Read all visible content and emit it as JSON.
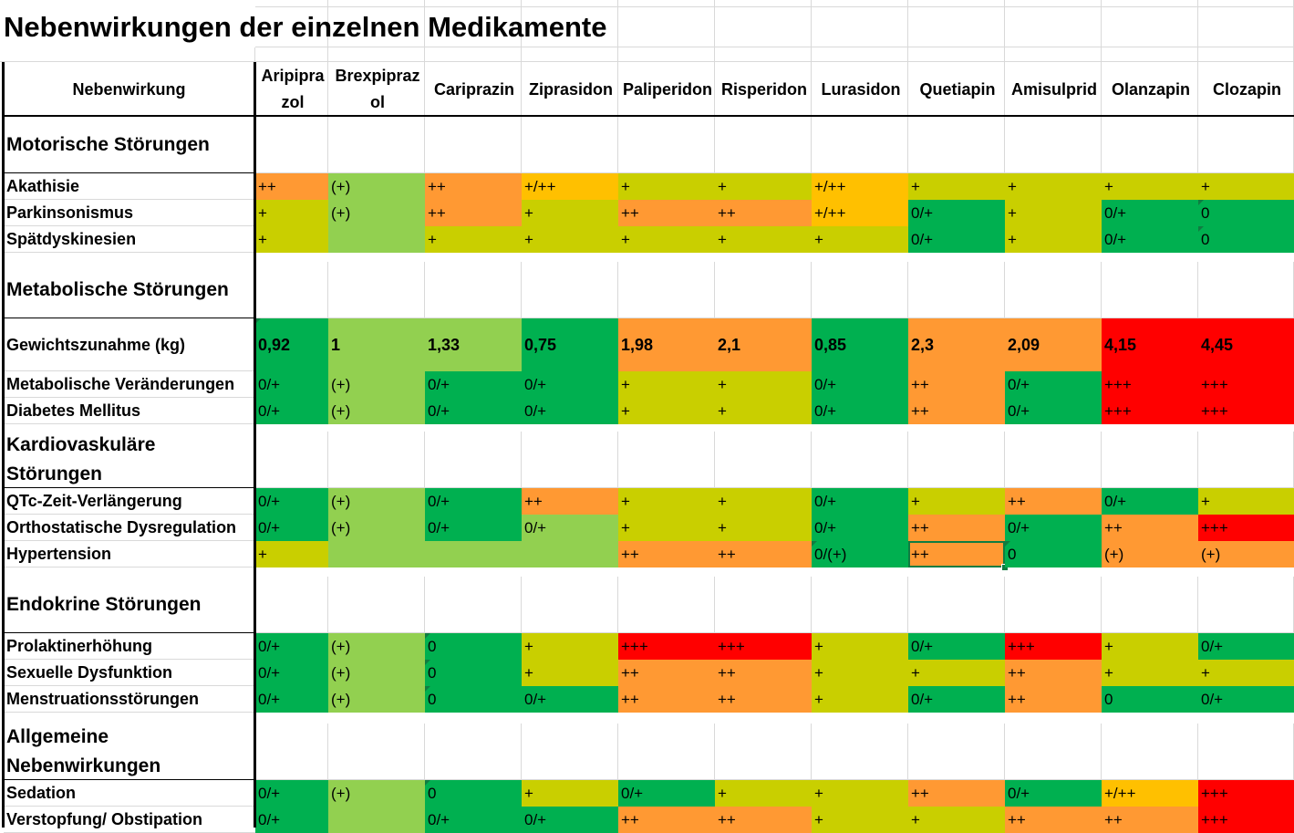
{
  "title": "Nebenwirkungen der einzelnen Medikamente",
  "header": {
    "label_column": "Nebenwirkung",
    "columns": [
      "Aripiprazol",
      "Brexpiprazol",
      "Cariprazin",
      "Ziprasidon",
      "Paliperidon",
      "Risperidon",
      "Lurasidon",
      "Quetiapin",
      "Amisulprid",
      "Olanzapin",
      "Clozapin"
    ]
  },
  "colors": {
    "dark_green": "#00b050",
    "light_green": "#92d050",
    "yellow_green": "#c9cf00",
    "amber": "#ffc000",
    "orange": "#ff9933",
    "red": "#ff0000"
  },
  "sections": [
    {
      "title": "Motorische Störungen",
      "rows": [
        {
          "label": "Akathisie",
          "cells": [
            {
              "text": "++",
              "color": "orange"
            },
            {
              "text": "(+)",
              "color": "light_green"
            },
            {
              "text": "++",
              "color": "orange"
            },
            {
              "text": "+/++",
              "color": "amber"
            },
            {
              "text": "+",
              "color": "yellow_green"
            },
            {
              "text": "+",
              "color": "yellow_green"
            },
            {
              "text": "+/++",
              "color": "amber"
            },
            {
              "text": "+",
              "color": "yellow_green"
            },
            {
              "text": "+",
              "color": "yellow_green"
            },
            {
              "text": "+",
              "color": "yellow_green"
            },
            {
              "text": "+",
              "color": "yellow_green"
            }
          ]
        },
        {
          "label": "Parkinsonismus",
          "cells": [
            {
              "text": "+",
              "color": "yellow_green"
            },
            {
              "text": "(+)",
              "color": "light_green"
            },
            {
              "text": "++",
              "color": "orange"
            },
            {
              "text": "+",
              "color": "yellow_green"
            },
            {
              "text": "++",
              "color": "orange"
            },
            {
              "text": "++",
              "color": "orange"
            },
            {
              "text": "+/++",
              "color": "amber"
            },
            {
              "text": "0/+",
              "color": "dark_green"
            },
            {
              "text": "+",
              "color": "yellow_green"
            },
            {
              "text": "0/+",
              "color": "dark_green"
            },
            {
              "text": "0",
              "color": "dark_green",
              "mark": true
            }
          ]
        },
        {
          "label": "Spätdyskinesien",
          "cells": [
            {
              "text": "+",
              "color": "yellow_green"
            },
            {
              "text": "",
              "color": "light_green"
            },
            {
              "text": "+",
              "color": "yellow_green"
            },
            {
              "text": "+",
              "color": "yellow_green"
            },
            {
              "text": "+",
              "color": "yellow_green"
            },
            {
              "text": "+",
              "color": "yellow_green"
            },
            {
              "text": "+",
              "color": "yellow_green"
            },
            {
              "text": "0/+",
              "color": "dark_green"
            },
            {
              "text": "+",
              "color": "yellow_green"
            },
            {
              "text": "0/+",
              "color": "dark_green"
            },
            {
              "text": "0",
              "color": "dark_green",
              "mark": true
            }
          ]
        }
      ]
    },
    {
      "title": "Metabolische Störungen",
      "rows": [
        {
          "label": "Gewichtszunahme (kg)",
          "bold": true,
          "cells": [
            {
              "text": "0,92",
              "color": "dark_green",
              "mark": true
            },
            {
              "text": "1",
              "color": "light_green"
            },
            {
              "text": "1,33",
              "color": "light_green"
            },
            {
              "text": "0,75",
              "color": "dark_green"
            },
            {
              "text": "1,98",
              "color": "orange"
            },
            {
              "text": "2,1",
              "color": "orange"
            },
            {
              "text": "0,85",
              "color": "dark_green"
            },
            {
              "text": "2,3",
              "color": "orange"
            },
            {
              "text": "2,09",
              "color": "orange"
            },
            {
              "text": "4,15",
              "color": "red"
            },
            {
              "text": "4,45",
              "color": "red"
            }
          ]
        },
        {
          "label": "Metabolische Veränderungen",
          "cells": [
            {
              "text": "0/+",
              "color": "dark_green"
            },
            {
              "text": "(+)",
              "color": "light_green"
            },
            {
              "text": "0/+",
              "color": "dark_green"
            },
            {
              "text": "0/+",
              "color": "dark_green"
            },
            {
              "text": "+",
              "color": "yellow_green"
            },
            {
              "text": "+",
              "color": "yellow_green"
            },
            {
              "text": "0/+",
              "color": "dark_green"
            },
            {
              "text": "++",
              "color": "orange"
            },
            {
              "text": "0/+",
              "color": "dark_green"
            },
            {
              "text": "+++",
              "color": "red"
            },
            {
              "text": "+++",
              "color": "red"
            }
          ]
        },
        {
          "label": "Diabetes Mellitus",
          "cells": [
            {
              "text": "0/+",
              "color": "dark_green"
            },
            {
              "text": "(+)",
              "color": "light_green"
            },
            {
              "text": "0/+",
              "color": "dark_green"
            },
            {
              "text": "0/+",
              "color": "dark_green"
            },
            {
              "text": "+",
              "color": "yellow_green"
            },
            {
              "text": "+",
              "color": "yellow_green"
            },
            {
              "text": "0/+",
              "color": "dark_green"
            },
            {
              "text": "++",
              "color": "orange"
            },
            {
              "text": "0/+",
              "color": "dark_green"
            },
            {
              "text": "+++",
              "color": "red"
            },
            {
              "text": "+++",
              "color": "red"
            }
          ]
        }
      ]
    },
    {
      "title": "Kardiovaskuläre Störungen",
      "rows": [
        {
          "label": "QTc-Zeit-Verlängerung",
          "cells": [
            {
              "text": "0/+",
              "color": "dark_green"
            },
            {
              "text": "(+)",
              "color": "light_green"
            },
            {
              "text": "0/+",
              "color": "dark_green"
            },
            {
              "text": "++",
              "color": "orange"
            },
            {
              "text": "+",
              "color": "yellow_green"
            },
            {
              "text": "+",
              "color": "yellow_green"
            },
            {
              "text": "0/+",
              "color": "dark_green"
            },
            {
              "text": "+",
              "color": "yellow_green"
            },
            {
              "text": "++",
              "color": "orange"
            },
            {
              "text": "0/+",
              "color": "dark_green"
            },
            {
              "text": "+",
              "color": "yellow_green"
            }
          ]
        },
        {
          "label": "Orthostatische Dysregulation",
          "cells": [
            {
              "text": "0/+",
              "color": "dark_green"
            },
            {
              "text": "(+)",
              "color": "light_green"
            },
            {
              "text": "0/+",
              "color": "dark_green"
            },
            {
              "text": "0/+",
              "color": "light_green"
            },
            {
              "text": "+",
              "color": "yellow_green"
            },
            {
              "text": "+",
              "color": "yellow_green"
            },
            {
              "text": "0/+",
              "color": "dark_green"
            },
            {
              "text": "++",
              "color": "orange"
            },
            {
              "text": "0/+",
              "color": "dark_green"
            },
            {
              "text": "++",
              "color": "orange"
            },
            {
              "text": "+++",
              "color": "red"
            }
          ]
        },
        {
          "label": "Hypertension",
          "cells": [
            {
              "text": "+",
              "color": "yellow_green"
            },
            {
              "text": "",
              "color": "light_green"
            },
            {
              "text": "",
              "color": "light_green"
            },
            {
              "text": "",
              "color": "light_green"
            },
            {
              "text": "++",
              "color": "orange"
            },
            {
              "text": "++",
              "color": "orange"
            },
            {
              "text": "0/(+)",
              "color": "dark_green",
              "mark": true
            },
            {
              "text": "++",
              "color": "orange",
              "selected": true
            },
            {
              "text": "0",
              "color": "dark_green",
              "mark": true
            },
            {
              "text": "(+)",
              "color": "orange"
            },
            {
              "text": "(+)",
              "color": "orange"
            }
          ]
        }
      ]
    },
    {
      "title": "Endokrine Störungen",
      "rows": [
        {
          "label": "Prolaktinerhöhung",
          "cells": [
            {
              "text": "0/+",
              "color": "dark_green"
            },
            {
              "text": "(+)",
              "color": "light_green"
            },
            {
              "text": "0",
              "color": "dark_green",
              "mark": true
            },
            {
              "text": "+",
              "color": "yellow_green"
            },
            {
              "text": "+++",
              "color": "red"
            },
            {
              "text": "+++",
              "color": "red"
            },
            {
              "text": "+",
              "color": "yellow_green"
            },
            {
              "text": "0/+",
              "color": "dark_green"
            },
            {
              "text": "+++",
              "color": "red"
            },
            {
              "text": "+",
              "color": "yellow_green"
            },
            {
              "text": "0/+",
              "color": "dark_green"
            }
          ]
        },
        {
          "label": "Sexuelle Dysfunktion",
          "cells": [
            {
              "text": "0/+",
              "color": "dark_green"
            },
            {
              "text": "(+)",
              "color": "light_green"
            },
            {
              "text": "0",
              "color": "dark_green",
              "mark": true
            },
            {
              "text": "+",
              "color": "yellow_green"
            },
            {
              "text": "++",
              "color": "orange"
            },
            {
              "text": "++",
              "color": "orange"
            },
            {
              "text": "+",
              "color": "yellow_green"
            },
            {
              "text": "+",
              "color": "yellow_green"
            },
            {
              "text": "++",
              "color": "orange"
            },
            {
              "text": "+",
              "color": "yellow_green"
            },
            {
              "text": "+",
              "color": "yellow_green"
            }
          ]
        },
        {
          "label": "Menstruationsstörungen",
          "cells": [
            {
              "text": "0/+",
              "color": "dark_green"
            },
            {
              "text": "(+)",
              "color": "light_green"
            },
            {
              "text": "0",
              "color": "dark_green",
              "mark": true
            },
            {
              "text": "0/+",
              "color": "dark_green"
            },
            {
              "text": "++",
              "color": "orange"
            },
            {
              "text": "++",
              "color": "orange"
            },
            {
              "text": "+",
              "color": "yellow_green"
            },
            {
              "text": "0/+",
              "color": "dark_green"
            },
            {
              "text": "++",
              "color": "orange"
            },
            {
              "text": "0",
              "color": "dark_green"
            },
            {
              "text": "0/+",
              "color": "dark_green"
            }
          ]
        }
      ]
    },
    {
      "title": "Allgemeine Nebenwirkungen",
      "rows": [
        {
          "label": "Sedation",
          "cells": [
            {
              "text": "0/+",
              "color": "dark_green"
            },
            {
              "text": "(+)",
              "color": "light_green"
            },
            {
              "text": "0",
              "color": "dark_green",
              "mark": true
            },
            {
              "text": "+",
              "color": "yellow_green"
            },
            {
              "text": "0/+",
              "color": "dark_green"
            },
            {
              "text": "+",
              "color": "yellow_green"
            },
            {
              "text": "+",
              "color": "yellow_green"
            },
            {
              "text": "++",
              "color": "orange"
            },
            {
              "text": "0/+",
              "color": "dark_green"
            },
            {
              "text": "+/++",
              "color": "amber"
            },
            {
              "text": "+++",
              "color": "red"
            }
          ]
        },
        {
          "label": "Verstopfung/ Obstipation",
          "cells": [
            {
              "text": "0/+",
              "color": "dark_green"
            },
            {
              "text": "",
              "color": "light_green"
            },
            {
              "text": "0/+",
              "color": "dark_green"
            },
            {
              "text": "0/+",
              "color": "dark_green"
            },
            {
              "text": "++",
              "color": "orange"
            },
            {
              "text": "++",
              "color": "orange"
            },
            {
              "text": "+",
              "color": "yellow_green"
            },
            {
              "text": "+",
              "color": "yellow_green"
            },
            {
              "text": "++",
              "color": "orange"
            },
            {
              "text": "++",
              "color": "orange"
            },
            {
              "text": "+++",
              "color": "red"
            }
          ]
        }
      ]
    }
  ]
}
